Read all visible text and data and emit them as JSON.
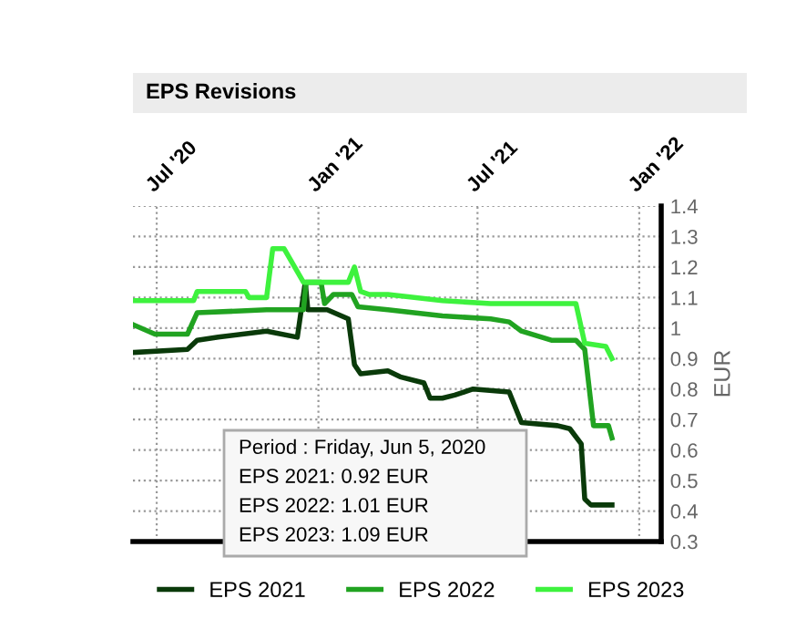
{
  "chart_data": {
    "type": "line",
    "title": "EPS Revisions",
    "ylabel": "EUR",
    "annotations": [
      "Period : Friday, Jun 5, 2020",
      "EPS 2021: 0.92 EUR",
      "EPS 2022: 1.01 EUR",
      "EPS 2023: 1.09 EUR"
    ],
    "series": [
      {
        "name": "EPS 2021",
        "color": "#0a3a0a",
        "x": [
          "2020-06-05",
          "2020-08-05",
          "2020-08-16",
          "2020-09-09",
          "2020-11-03",
          "2020-12-08",
          "2020-12-17",
          "2020-12-20",
          "2021-01-11",
          "2021-02-04",
          "2021-02-11",
          "2021-02-18",
          "2021-03-21",
          "2021-04-04",
          "2021-05-01",
          "2021-05-08",
          "2021-05-22",
          "2021-06-05",
          "2021-06-26",
          "2021-08-06",
          "2021-08-20",
          "2021-09-30",
          "2021-10-14",
          "2021-10-27",
          "2021-10-31",
          "2021-11-07",
          "2021-12-01"
        ],
        "values": [
          0.92,
          0.93,
          0.96,
          0.97,
          0.99,
          0.97,
          1.15,
          1.06,
          1.06,
          1.03,
          0.88,
          0.85,
          0.86,
          0.84,
          0.82,
          0.77,
          0.77,
          0.78,
          0.8,
          0.79,
          0.69,
          0.68,
          0.67,
          0.62,
          0.44,
          0.42,
          0.42
        ]
      },
      {
        "name": "EPS 2022",
        "color": "#21a321",
        "x": [
          "2020-06-05",
          "2020-06-29",
          "2020-08-05",
          "2020-08-16",
          "2020-11-03",
          "2020-12-15",
          "2020-12-18",
          "2021-01-04",
          "2021-01-08",
          "2021-01-18",
          "2021-02-08",
          "2021-02-15",
          "2021-03-21",
          "2021-05-22",
          "2021-07-16",
          "2021-08-06",
          "2021-08-20",
          "2021-09-23",
          "2021-10-21",
          "2021-10-31",
          "2021-11-10",
          "2021-11-27",
          "2021-12-01"
        ],
        "values": [
          1.01,
          0.98,
          0.98,
          1.05,
          1.06,
          1.06,
          1.15,
          1.15,
          1.08,
          1.11,
          1.11,
          1.07,
          1.06,
          1.04,
          1.03,
          1.02,
          0.99,
          0.96,
          0.96,
          0.93,
          0.68,
          0.68,
          0.64
        ]
      },
      {
        "name": "EPS 2023",
        "color": "#3ef23e",
        "x": [
          "2020-06-05",
          "2020-08-12",
          "2020-08-16",
          "2020-10-10",
          "2020-10-14",
          "2020-11-03",
          "2020-11-10",
          "2020-11-23",
          "2020-12-15",
          "2021-02-04",
          "2021-02-11",
          "2021-02-18",
          "2021-02-28",
          "2021-03-21",
          "2021-05-22",
          "2021-07-16",
          "2021-10-21",
          "2021-10-31",
          "2021-11-24",
          "2021-12-01"
        ],
        "values": [
          1.09,
          1.09,
          1.12,
          1.12,
          1.1,
          1.1,
          1.26,
          1.26,
          1.15,
          1.15,
          1.2,
          1.12,
          1.11,
          1.11,
          1.09,
          1.08,
          1.08,
          0.95,
          0.94,
          0.9
        ]
      }
    ],
    "xlim": [
      "2020-06-04",
      "2022-01-26"
    ],
    "xticks": [
      {
        "value": "2020-07-01",
        "label": "Jul '20"
      },
      {
        "value": "2021-01-01",
        "label": "Jan '21"
      },
      {
        "value": "2021-07-01",
        "label": "Jul '21"
      },
      {
        "value": "2022-01-01",
        "label": "Jan '22"
      }
    ],
    "ylim": [
      0.3,
      1.4
    ],
    "yticks": [
      0.3,
      0.4,
      0.5,
      0.6,
      0.7,
      0.8,
      0.9,
      1,
      1.1,
      1.2,
      1.3,
      1.4
    ],
    "grid": true,
    "legend": "bottom",
    "line_style": "solid",
    "marker": "none"
  }
}
